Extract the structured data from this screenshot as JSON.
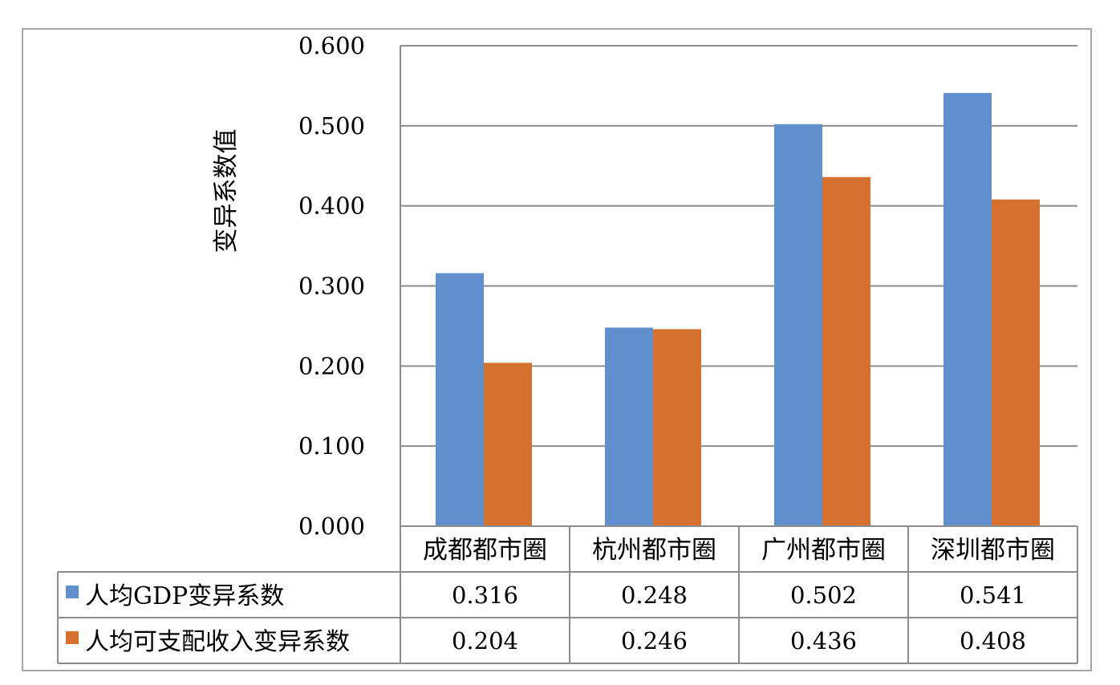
{
  "chart_data": {
    "type": "bar",
    "title": "",
    "xlabel": "",
    "ylabel": "变异系数值",
    "ylim": [
      0,
      0.6
    ],
    "yticks": [
      "0.000",
      "0.100",
      "0.200",
      "0.300",
      "0.400",
      "0.500",
      "0.600"
    ],
    "grid": true,
    "legend": "data-table",
    "categories": [
      "成都都市圈",
      "杭州都市圈",
      "广州都市圈",
      "深圳都市圈"
    ],
    "series": [
      {
        "name": "人均GDP变异系数",
        "color": "#5f8fcd",
        "values": [
          0.316,
          0.248,
          0.502,
          0.541
        ],
        "labels": [
          "0.316",
          "0.248",
          "0.502",
          "0.541"
        ]
      },
      {
        "name": "人均可支配收入变异系数",
        "color": "#d5702e",
        "values": [
          0.204,
          0.246,
          0.436,
          0.408
        ],
        "labels": [
          "0.204",
          "0.246",
          "0.436",
          "0.408"
        ]
      }
    ]
  }
}
